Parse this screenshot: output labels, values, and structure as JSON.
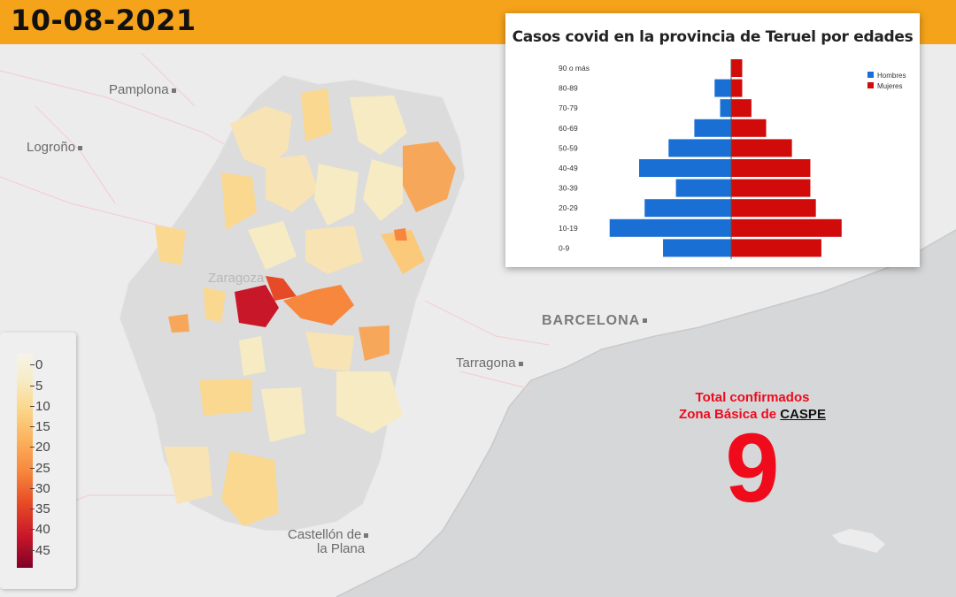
{
  "header": {
    "date": "10-08-2021"
  },
  "map": {
    "cities": [
      {
        "name": "Pamplona",
        "style": "normal"
      },
      {
        "name": "Logroño",
        "style": "normal"
      },
      {
        "name": "BARCELONA",
        "style": "big"
      },
      {
        "name": "Tarragona",
        "style": "normal"
      },
      {
        "name": "Zaragoza",
        "style": "faint"
      },
      {
        "name": "Castellón de",
        "style": "normal"
      },
      {
        "name": "la Plana",
        "style": "normal"
      }
    ],
    "colors": {
      "sea": "#d5d7d9",
      "land": "#ececec",
      "region_none": "#dcdcdc",
      "highlight": "#c9172a"
    }
  },
  "legend": {
    "ticks": [
      "0",
      "5",
      "10",
      "15",
      "20",
      "25",
      "30",
      "35",
      "40",
      "45"
    ],
    "colors": [
      "#f7f3ea",
      "#f7ecc5",
      "#fbd88e",
      "#fbb35d",
      "#f7873d",
      "#e74a26",
      "#c9172a",
      "#800026"
    ]
  },
  "chart": {
    "title": "Casos covid en la provincia de Teruel por edades"
  },
  "chart_data": {
    "type": "bar",
    "orientation": "horizontal-pyramid",
    "categories": [
      "90 o más",
      "80-89",
      "70-79",
      "60-69",
      "50-59",
      "40-49",
      "30-39",
      "20-29",
      "10-19",
      "0-9"
    ],
    "series": [
      {
        "name": "Hombres",
        "color": "#1a6fd4",
        "values": [
          0,
          9,
          6,
          20,
          34,
          50,
          30,
          47,
          66,
          37
        ]
      },
      {
        "name": "Mujeres",
        "color": "#d10a0a",
        "values": [
          6,
          6,
          11,
          19,
          33,
          43,
          43,
          46,
          60,
          49
        ]
      }
    ],
    "legend_position": "top-right",
    "grid": false
  },
  "total": {
    "line1": "Total confirmados",
    "line2_prefix": "Zona Básica de ",
    "zona": "CASPE",
    "value": "9"
  }
}
